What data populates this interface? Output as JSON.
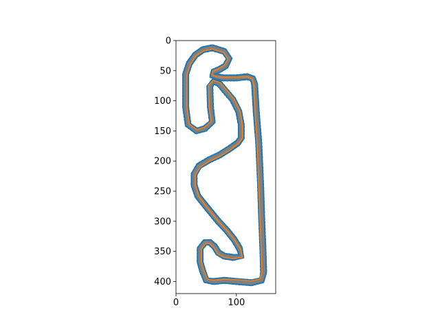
{
  "chart_data": {
    "type": "line",
    "title": "",
    "xlabel": "",
    "ylabel": "",
    "xlim": [
      0,
      165
    ],
    "ylim": [
      420,
      0
    ],
    "x_ticks": [
      0,
      100
    ],
    "y_ticks": [
      0,
      50,
      100,
      150,
      200,
      250,
      300,
      350,
      400
    ],
    "x_tick_labels": [
      "0",
      "100"
    ],
    "y_tick_labels": [
      "0",
      "50",
      "100",
      "150",
      "200",
      "250",
      "300",
      "350",
      "400"
    ],
    "grid": false,
    "legend": "none",
    "colors": {
      "track_fill": "#808080",
      "outer_boundary": "#1f77b4",
      "inner_boundary": "#1f77b4",
      "racing_line": "#ff7f0e",
      "edge_pixels": "#000000"
    },
    "series": [
      {
        "role": "centerline",
        "points": [
          [
            60,
            12
          ],
          [
            80,
            18
          ],
          [
            88,
            30
          ],
          [
            82,
            42
          ],
          [
            72,
            48
          ],
          [
            62,
            52
          ],
          [
            60,
            58
          ],
          [
            68,
            60
          ],
          [
            78,
            62
          ],
          [
            100,
            62
          ],
          [
            118,
            60
          ],
          [
            127,
            63
          ],
          [
            130,
            72
          ],
          [
            133,
            120
          ],
          [
            137,
            170
          ],
          [
            140,
            240
          ],
          [
            142,
            300
          ],
          [
            144,
            350
          ],
          [
            145,
            385
          ],
          [
            142,
            398
          ],
          [
            125,
            402
          ],
          [
            100,
            400
          ],
          [
            80,
            398
          ],
          [
            62,
            400
          ],
          [
            50,
            398
          ],
          [
            44,
            382
          ],
          [
            40,
            368
          ],
          [
            40,
            345
          ],
          [
            48,
            335
          ],
          [
            56,
            335
          ],
          [
            64,
            342
          ],
          [
            70,
            352
          ],
          [
            80,
            358
          ],
          [
            95,
            360
          ],
          [
            108,
            358
          ],
          [
            105,
            345
          ],
          [
            96,
            330
          ],
          [
            84,
            315
          ],
          [
            70,
            300
          ],
          [
            52,
            278
          ],
          [
            36,
            258
          ],
          [
            30,
            240
          ],
          [
            30,
            222
          ],
          [
            38,
            208
          ],
          [
            55,
            198
          ],
          [
            72,
            190
          ],
          [
            88,
            180
          ],
          [
            102,
            170
          ],
          [
            108,
            162
          ],
          [
            108,
            140
          ],
          [
            104,
            118
          ],
          [
            94,
            98
          ],
          [
            82,
            84
          ],
          [
            72,
            72
          ],
          [
            62,
            68
          ],
          [
            56,
            76
          ],
          [
            57,
            110
          ],
          [
            60,
            135
          ],
          [
            48,
            146
          ],
          [
            34,
            150
          ],
          [
            20,
            140
          ],
          [
            16,
            110
          ],
          [
            16,
            80
          ],
          [
            16,
            56
          ],
          [
            22,
            38
          ],
          [
            32,
            24
          ],
          [
            45,
            15
          ],
          [
            60,
            12
          ]
        ]
      },
      {
        "role": "racing-line",
        "points": [
          [
            60,
            14
          ],
          [
            79,
            20
          ],
          [
            86,
            31
          ],
          [
            80,
            41
          ],
          [
            70,
            47
          ],
          [
            61,
            51
          ],
          [
            59,
            57
          ],
          [
            67,
            60
          ],
          [
            80,
            61
          ],
          [
            102,
            61
          ],
          [
            118,
            60
          ],
          [
            126,
            64
          ],
          [
            129,
            75
          ],
          [
            131,
            120
          ],
          [
            134,
            170
          ],
          [
            137,
            240
          ],
          [
            139,
            300
          ],
          [
            141,
            350
          ],
          [
            142,
            384
          ],
          [
            139,
            396
          ],
          [
            124,
            399
          ],
          [
            100,
            397
          ],
          [
            80,
            396
          ],
          [
            63,
            398
          ],
          [
            52,
            396
          ],
          [
            46,
            381
          ],
          [
            42,
            367
          ],
          [
            42,
            346
          ],
          [
            49,
            337
          ],
          [
            56,
            337
          ],
          [
            63,
            344
          ],
          [
            69,
            354
          ],
          [
            80,
            360
          ],
          [
            95,
            362
          ],
          [
            110,
            360
          ],
          [
            107,
            346
          ],
          [
            97,
            331
          ],
          [
            85,
            316
          ],
          [
            71,
            301
          ],
          [
            53,
            279
          ],
          [
            38,
            259
          ],
          [
            32,
            240
          ],
          [
            32,
            223
          ],
          [
            40,
            210
          ],
          [
            56,
            200
          ],
          [
            73,
            192
          ],
          [
            89,
            182
          ],
          [
            103,
            171
          ],
          [
            110,
            162
          ],
          [
            110,
            140
          ],
          [
            106,
            117
          ],
          [
            96,
            97
          ],
          [
            84,
            82
          ],
          [
            73,
            70
          ],
          [
            62,
            66
          ],
          [
            54,
            74
          ],
          [
            55,
            110
          ],
          [
            58,
            134
          ],
          [
            47,
            144
          ],
          [
            35,
            148
          ],
          [
            22,
            139
          ],
          [
            18,
            110
          ],
          [
            18,
            80
          ],
          [
            18,
            57
          ],
          [
            24,
            39
          ],
          [
            33,
            25
          ],
          [
            46,
            17
          ],
          [
            60,
            14
          ]
        ]
      }
    ],
    "track_half_width": 4.5
  }
}
